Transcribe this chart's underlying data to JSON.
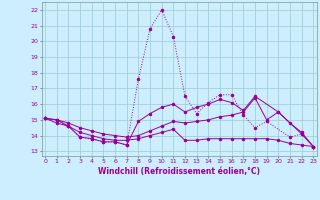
{
  "bg_color": "#cceeff",
  "grid_color": "#99cccc",
  "line_color": "#990099",
  "xlabel": "Windchill (Refroidissement éolien,°C)",
  "x_ticks": [
    0,
    1,
    2,
    3,
    4,
    5,
    6,
    7,
    8,
    9,
    10,
    11,
    12,
    13,
    14,
    15,
    16,
    17,
    18,
    19,
    20,
    21,
    22,
    23
  ],
  "y_ticks": [
    13,
    14,
    15,
    16,
    17,
    18,
    19,
    20,
    21,
    22
  ],
  "ylim": [
    12.7,
    22.5
  ],
  "xlim": [
    -0.3,
    23.3
  ],
  "series": [
    {
      "x": [
        0,
        1,
        2,
        3,
        4,
        5,
        6,
        7,
        8,
        9,
        10,
        11,
        12,
        13,
        14,
        15,
        16,
        17,
        18,
        19,
        21,
        22,
        23
      ],
      "y": [
        15.1,
        15.0,
        14.6,
        13.9,
        13.8,
        13.6,
        13.6,
        13.4,
        17.6,
        20.8,
        22.0,
        20.3,
        16.5,
        15.4,
        16.1,
        16.6,
        16.6,
        15.3,
        14.5,
        14.9,
        13.9,
        14.1,
        13.3
      ],
      "style": "dotted"
    },
    {
      "x": [
        0,
        1,
        2,
        3,
        4,
        5,
        6,
        7,
        8,
        9,
        10,
        11,
        12,
        13,
        14,
        15,
        16,
        17,
        18,
        20,
        22,
        23
      ],
      "y": [
        15.1,
        15.0,
        14.6,
        13.9,
        13.8,
        13.6,
        13.6,
        13.4,
        14.9,
        15.4,
        15.8,
        16.0,
        15.5,
        15.8,
        16.0,
        16.3,
        16.1,
        15.6,
        16.5,
        15.5,
        14.1,
        13.3
      ],
      "style": "solid"
    },
    {
      "x": [
        0,
        1,
        2,
        3,
        4,
        5,
        6,
        7,
        8,
        9,
        10,
        11,
        12,
        13,
        14,
        15,
        16,
        17,
        18,
        19,
        20,
        21,
        22,
        23
      ],
      "y": [
        15.1,
        14.8,
        14.6,
        14.2,
        14.0,
        13.8,
        13.7,
        13.7,
        13.8,
        14.0,
        14.2,
        14.4,
        13.7,
        13.7,
        13.8,
        13.8,
        13.8,
        13.8,
        13.8,
        13.8,
        13.7,
        13.5,
        13.4,
        13.3
      ],
      "style": "solid"
    },
    {
      "x": [
        0,
        1,
        2,
        3,
        4,
        5,
        6,
        7,
        8,
        9,
        10,
        11,
        12,
        13,
        14,
        15,
        16,
        17,
        18,
        19,
        20,
        21,
        22,
        23
      ],
      "y": [
        15.1,
        15.0,
        14.8,
        14.5,
        14.3,
        14.1,
        14.0,
        13.9,
        14.0,
        14.3,
        14.6,
        14.9,
        14.8,
        14.9,
        15.0,
        15.2,
        15.3,
        15.5,
        16.4,
        15.0,
        15.5,
        14.8,
        14.2,
        13.3
      ],
      "style": "solid"
    }
  ]
}
